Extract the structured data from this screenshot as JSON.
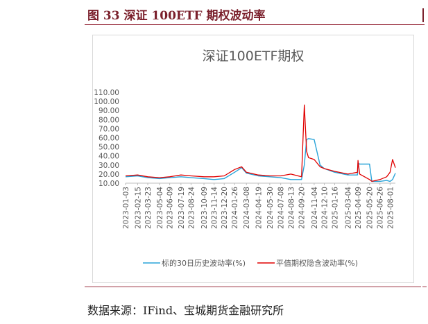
{
  "figure": {
    "caption": "图 33 深证 100ETF 期权波动率",
    "source": "数据来源：IFind、宝城期货金融研究所"
  },
  "colors": {
    "accent": "#7a1f2b",
    "series_hv": "#29a3d8",
    "series_iv": "#e00000",
    "axis_text": "#595959"
  },
  "chart_data": {
    "type": "line",
    "title": "深证100ETF期权",
    "xlabel": "",
    "ylabel": "",
    "ylim": [
      10,
      110
    ],
    "yticks": [
      "110.00",
      "100.00",
      "90.00",
      "80.00",
      "70.00",
      "60.00",
      "50.00",
      "40.00",
      "30.00",
      "20.00",
      "10.00"
    ],
    "x_tick_labels": [
      "2023-01-03",
      "2023-02-15",
      "2023-03-23",
      "2023-05-04",
      "2023-06-09",
      "2023-07-19",
      "2023-08-24",
      "2023-10-09",
      "2023-11-14",
      "2023-12-20",
      "2024-01-26",
      "2024-03-08",
      "2024-04-19",
      "2024-05-30",
      "2024-07-08",
      "2024-08-13",
      "2024-09-20",
      "2024-11-04",
      "2024-12-10",
      "2025-01-16",
      "2025-03-04",
      "2025-04-09",
      "2025-05-20",
      "2025-06-26",
      "2025-08-01"
    ],
    "legend_position": "bottom",
    "x": [
      "2023-01-03",
      "2023-02-15",
      "2023-03-23",
      "2023-05-04",
      "2023-06-09",
      "2023-07-19",
      "2023-08-24",
      "2023-10-09",
      "2023-11-14",
      "2023-12-20",
      "2024-01-26",
      "2024-02-20",
      "2024-03-08",
      "2024-04-19",
      "2024-05-30",
      "2024-07-08",
      "2024-08-13",
      "2024-09-20",
      "2024-09-30",
      "2024-10-08",
      "2024-10-15",
      "2024-11-04",
      "2024-11-25",
      "2024-12-10",
      "2025-01-16",
      "2025-03-04",
      "2025-04-07",
      "2025-04-09",
      "2025-04-15",
      "2025-05-20",
      "2025-05-28",
      "2025-06-26",
      "2025-07-20",
      "2025-08-01",
      "2025-08-10",
      "2025-08-20"
    ],
    "series": [
      {
        "name": "标的30日历史波动率(%)",
        "values": [
          17,
          18,
          16,
          15,
          16,
          17,
          16,
          15,
          14,
          15,
          22,
          27,
          21,
          18,
          17,
          16,
          14,
          14,
          30,
          58,
          59,
          58,
          30,
          26,
          22,
          19,
          19,
          32,
          31,
          31,
          12,
          12,
          13,
          12,
          14,
          21
        ]
      },
      {
        "name": "平值期权隐含波动率(%)",
        "values": [
          18,
          19,
          17,
          16,
          17,
          19,
          18,
          17,
          17,
          18,
          25,
          28,
          22,
          19,
          18,
          18,
          20,
          17,
          96,
          45,
          38,
          36,
          28,
          26,
          23,
          20,
          22,
          35,
          20,
          14,
          12,
          14,
          17,
          22,
          36,
          27
        ]
      }
    ]
  }
}
